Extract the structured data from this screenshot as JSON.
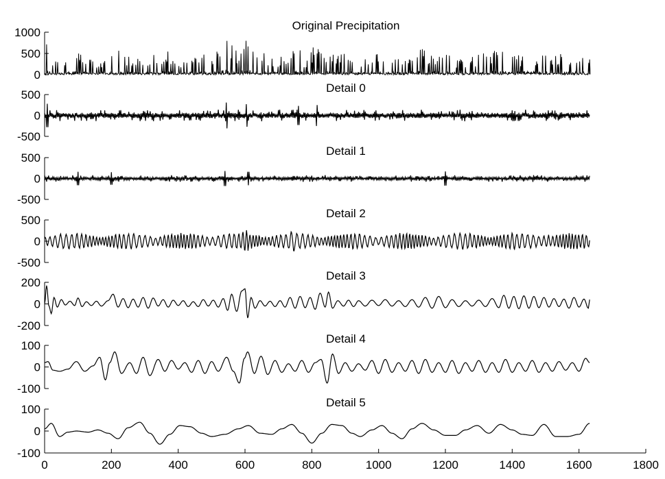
{
  "chart_data": [
    {
      "type": "line",
      "title": "Original Precipitation",
      "ylim": [
        0,
        1000
      ],
      "yticks": [
        "1000",
        "500",
        "0"
      ],
      "xlim": [
        0,
        1800
      ],
      "points": [
        [
          0,
          450
        ],
        [
          8,
          820
        ],
        [
          16,
          120
        ],
        [
          30,
          500
        ],
        [
          50,
          380
        ],
        [
          75,
          620
        ],
        [
          100,
          520
        ],
        [
          140,
          430
        ],
        [
          180,
          380
        ],
        [
          205,
          680
        ],
        [
          240,
          470
        ],
        [
          280,
          420
        ],
        [
          320,
          520
        ],
        [
          360,
          630
        ],
        [
          400,
          380
        ],
        [
          450,
          440
        ],
        [
          500,
          520
        ],
        [
          545,
          870
        ],
        [
          580,
          560
        ],
        [
          605,
          820
        ],
        [
          640,
          560
        ],
        [
          680,
          480
        ],
        [
          720,
          460
        ],
        [
          760,
          670
        ],
        [
          780,
          420
        ],
        [
          815,
          760
        ],
        [
          840,
          580
        ],
        [
          880,
          520
        ],
        [
          920,
          440
        ],
        [
          960,
          460
        ],
        [
          1000,
          500
        ],
        [
          1040,
          520
        ],
        [
          1080,
          380
        ],
        [
          1120,
          620
        ],
        [
          1160,
          580
        ],
        [
          1200,
          560
        ],
        [
          1240,
          380
        ],
        [
          1280,
          460
        ],
        [
          1320,
          520
        ],
        [
          1370,
          620
        ],
        [
          1410,
          460
        ],
        [
          1450,
          560
        ],
        [
          1500,
          520
        ],
        [
          1540,
          520
        ],
        [
          1580,
          500
        ],
        [
          1625,
          420
        ]
      ],
      "baseline": 0
    },
    {
      "type": "line",
      "title": "Detail 0",
      "ylim": [
        -500,
        500
      ],
      "yticks": [
        "500",
        "0",
        "-500"
      ],
      "xlim": [
        0,
        1800
      ],
      "amplitude": 140,
      "peaks": [
        [
          8,
          280
        ],
        [
          545,
          310
        ],
        [
          605,
          270
        ],
        [
          760,
          230
        ],
        [
          815,
          250
        ]
      ]
    },
    {
      "type": "line",
      "title": "Detail 1",
      "ylim": [
        -500,
        500
      ],
      "yticks": [
        "500",
        "0",
        "-500"
      ],
      "xlim": [
        0,
        1800
      ],
      "amplitude": 80,
      "peaks": [
        [
          100,
          160
        ],
        [
          200,
          150
        ],
        [
          540,
          180
        ],
        [
          610,
          160
        ],
        [
          1200,
          170
        ]
      ]
    },
    {
      "type": "line",
      "title": "Detail 2",
      "ylim": [
        -500,
        500
      ],
      "yticks": [
        "500",
        "0",
        "-500"
      ],
      "xlim": [
        0,
        1800
      ],
      "amplitude": 200,
      "cycle_x": 13
    },
    {
      "type": "line",
      "title": "Detail 3",
      "ylim": [
        -200,
        200
      ],
      "yticks": [
        "200",
        "0",
        "-200"
      ],
      "xlim": [
        0,
        1800
      ],
      "points": [
        [
          0,
          0
        ],
        [
          6,
          170
        ],
        [
          13,
          -20
        ],
        [
          20,
          -90
        ],
        [
          28,
          60
        ],
        [
          38,
          -30
        ],
        [
          50,
          40
        ],
        [
          62,
          -10
        ],
        [
          76,
          25
        ],
        [
          90,
          -15
        ],
        [
          100,
          55
        ],
        [
          112,
          -25
        ],
        [
          125,
          20
        ],
        [
          140,
          -15
        ],
        [
          155,
          25
        ],
        [
          170,
          -20
        ],
        [
          190,
          30
        ],
        [
          205,
          90
        ],
        [
          220,
          -30
        ],
        [
          235,
          50
        ],
        [
          250,
          -35
        ],
        [
          265,
          45
        ],
        [
          280,
          -30
        ],
        [
          295,
          60
        ],
        [
          310,
          -40
        ],
        [
          325,
          55
        ],
        [
          340,
          -20
        ],
        [
          355,
          40
        ],
        [
          370,
          -30
        ],
        [
          385,
          35
        ],
        [
          400,
          -15
        ],
        [
          415,
          30
        ],
        [
          430,
          -25
        ],
        [
          445,
          20
        ],
        [
          460,
          -25
        ],
        [
          475,
          40
        ],
        [
          490,
          -20
        ],
        [
          505,
          35
        ],
        [
          520,
          -30
        ],
        [
          535,
          50
        ],
        [
          548,
          -60
        ],
        [
          560,
          90
        ],
        [
          575,
          -70
        ],
        [
          590,
          120
        ],
        [
          600,
          140
        ],
        [
          608,
          -130
        ],
        [
          618,
          60
        ],
        [
          630,
          -40
        ],
        [
          645,
          30
        ],
        [
          660,
          -20
        ],
        [
          675,
          25
        ],
        [
          690,
          -25
        ],
        [
          705,
          30
        ],
        [
          720,
          -30
        ],
        [
          735,
          60
        ],
        [
          750,
          -40
        ],
        [
          765,
          70
        ],
        [
          780,
          -35
        ],
        [
          795,
          60
        ],
        [
          810,
          -50
        ],
        [
          825,
          100
        ],
        [
          840,
          -30
        ],
        [
          850,
          110
        ],
        [
          862,
          -40
        ],
        [
          878,
          30
        ],
        [
          895,
          -20
        ],
        [
          910,
          35
        ],
        [
          925,
          -25
        ],
        [
          940,
          30
        ],
        [
          960,
          -20
        ],
        [
          980,
          35
        ],
        [
          1000,
          -15
        ],
        [
          1020,
          40
        ],
        [
          1040,
          -20
        ],
        [
          1060,
          30
        ],
        [
          1080,
          -25
        ],
        [
          1100,
          40
        ],
        [
          1120,
          -30
        ],
        [
          1140,
          60
        ],
        [
          1160,
          -40
        ],
        [
          1180,
          70
        ],
        [
          1200,
          -35
        ],
        [
          1220,
          40
        ],
        [
          1240,
          -25
        ],
        [
          1260,
          30
        ],
        [
          1280,
          -20
        ],
        [
          1300,
          35
        ],
        [
          1320,
          -25
        ],
        [
          1340,
          50
        ],
        [
          1360,
          -35
        ],
        [
          1375,
          80
        ],
        [
          1390,
          -40
        ],
        [
          1405,
          70
        ],
        [
          1420,
          -45
        ],
        [
          1435,
          75
        ],
        [
          1450,
          -40
        ],
        [
          1465,
          70
        ],
        [
          1480,
          -35
        ],
        [
          1495,
          60
        ],
        [
          1510,
          -30
        ],
        [
          1525,
          50
        ],
        [
          1540,
          -25
        ],
        [
          1555,
          45
        ],
        [
          1570,
          -40
        ],
        [
          1585,
          60
        ],
        [
          1600,
          -30
        ],
        [
          1615,
          45
        ],
        [
          1628,
          -40
        ],
        [
          1632,
          40
        ]
      ]
    },
    {
      "type": "line",
      "title": "Detail 4",
      "ylim": [
        -100,
        100
      ],
      "yticks": [
        "100",
        "0",
        "-100"
      ],
      "xlim": [
        0,
        1800
      ],
      "points": [
        [
          0,
          20
        ],
        [
          10,
          25
        ],
        [
          25,
          -15
        ],
        [
          45,
          -20
        ],
        [
          70,
          -10
        ],
        [
          95,
          25
        ],
        [
          120,
          -20
        ],
        [
          145,
          5
        ],
        [
          165,
          45
        ],
        [
          182,
          -60
        ],
        [
          195,
          20
        ],
        [
          210,
          70
        ],
        [
          230,
          -30
        ],
        [
          255,
          20
        ],
        [
          275,
          -30
        ],
        [
          295,
          45
        ],
        [
          315,
          -40
        ],
        [
          340,
          35
        ],
        [
          360,
          -20
        ],
        [
          380,
          30
        ],
        [
          400,
          -10
        ],
        [
          420,
          20
        ],
        [
          440,
          -25
        ],
        [
          460,
          30
        ],
        [
          480,
          -30
        ],
        [
          500,
          25
        ],
        [
          520,
          -20
        ],
        [
          545,
          45
        ],
        [
          565,
          -20
        ],
        [
          583,
          -75
        ],
        [
          598,
          40
        ],
        [
          608,
          70
        ],
        [
          628,
          -30
        ],
        [
          648,
          50
        ],
        [
          668,
          -35
        ],
        [
          690,
          30
        ],
        [
          710,
          -25
        ],
        [
          730,
          15
        ],
        [
          750,
          -20
        ],
        [
          770,
          30
        ],
        [
          790,
          -25
        ],
        [
          810,
          20
        ],
        [
          828,
          35
        ],
        [
          846,
          -75
        ],
        [
          862,
          60
        ],
        [
          880,
          -30
        ],
        [
          900,
          20
        ],
        [
          920,
          -20
        ],
        [
          940,
          15
        ],
        [
          960,
          -15
        ],
        [
          980,
          30
        ],
        [
          1000,
          -30
        ],
        [
          1020,
          35
        ],
        [
          1040,
          -25
        ],
        [
          1060,
          20
        ],
        [
          1080,
          -20
        ],
        [
          1100,
          30
        ],
        [
          1120,
          -30
        ],
        [
          1140,
          35
        ],
        [
          1160,
          -25
        ],
        [
          1180,
          20
        ],
        [
          1200,
          -25
        ],
        [
          1220,
          30
        ],
        [
          1240,
          -30
        ],
        [
          1260,
          20
        ],
        [
          1280,
          -20
        ],
        [
          1300,
          30
        ],
        [
          1320,
          -25
        ],
        [
          1340,
          20
        ],
        [
          1360,
          -25
        ],
        [
          1380,
          35
        ],
        [
          1400,
          -25
        ],
        [
          1420,
          20
        ],
        [
          1440,
          -20
        ],
        [
          1460,
          30
        ],
        [
          1480,
          -25
        ],
        [
          1500,
          20
        ],
        [
          1520,
          -20
        ],
        [
          1540,
          25
        ],
        [
          1560,
          -15
        ],
        [
          1580,
          20
        ],
        [
          1600,
          -20
        ],
        [
          1620,
          40
        ],
        [
          1632,
          20
        ]
      ]
    },
    {
      "type": "line",
      "title": "Detail 5",
      "ylim": [
        -100,
        100
      ],
      "yticks": [
        "100",
        "0",
        "-100"
      ],
      "xlim": [
        0,
        1800
      ],
      "points": [
        [
          0,
          10
        ],
        [
          20,
          35
        ],
        [
          45,
          -25
        ],
        [
          70,
          -5
        ],
        [
          95,
          0
        ],
        [
          130,
          -5
        ],
        [
          160,
          5
        ],
        [
          190,
          -10
        ],
        [
          220,
          -35
        ],
        [
          250,
          15
        ],
        [
          285,
          40
        ],
        [
          315,
          -10
        ],
        [
          345,
          -60
        ],
        [
          375,
          -15
        ],
        [
          405,
          25
        ],
        [
          435,
          20
        ],
        [
          470,
          -10
        ],
        [
          500,
          -25
        ],
        [
          540,
          -15
        ],
        [
          580,
          10
        ],
        [
          610,
          25
        ],
        [
          645,
          -10
        ],
        [
          680,
          -15
        ],
        [
          710,
          10
        ],
        [
          740,
          30
        ],
        [
          770,
          -10
        ],
        [
          800,
          -55
        ],
        [
          830,
          -10
        ],
        [
          860,
          30
        ],
        [
          890,
          25
        ],
        [
          920,
          -10
        ],
        [
          945,
          -25
        ],
        [
          980,
          5
        ],
        [
          1010,
          25
        ],
        [
          1040,
          -10
        ],
        [
          1070,
          -35
        ],
        [
          1100,
          10
        ],
        [
          1130,
          35
        ],
        [
          1165,
          5
        ],
        [
          1200,
          -20
        ],
        [
          1230,
          -20
        ],
        [
          1260,
          5
        ],
        [
          1295,
          25
        ],
        [
          1330,
          -10
        ],
        [
          1365,
          30
        ],
        [
          1400,
          5
        ],
        [
          1430,
          -15
        ],
        [
          1460,
          -20
        ],
        [
          1495,
          30
        ],
        [
          1530,
          -25
        ],
        [
          1565,
          -25
        ],
        [
          1600,
          -15
        ],
        [
          1632,
          35
        ]
      ]
    }
  ],
  "xaxis": {
    "ticks": [
      "0",
      "200",
      "400",
      "600",
      "800",
      "1000",
      "1200",
      "1400",
      "1600",
      "1800"
    ]
  }
}
